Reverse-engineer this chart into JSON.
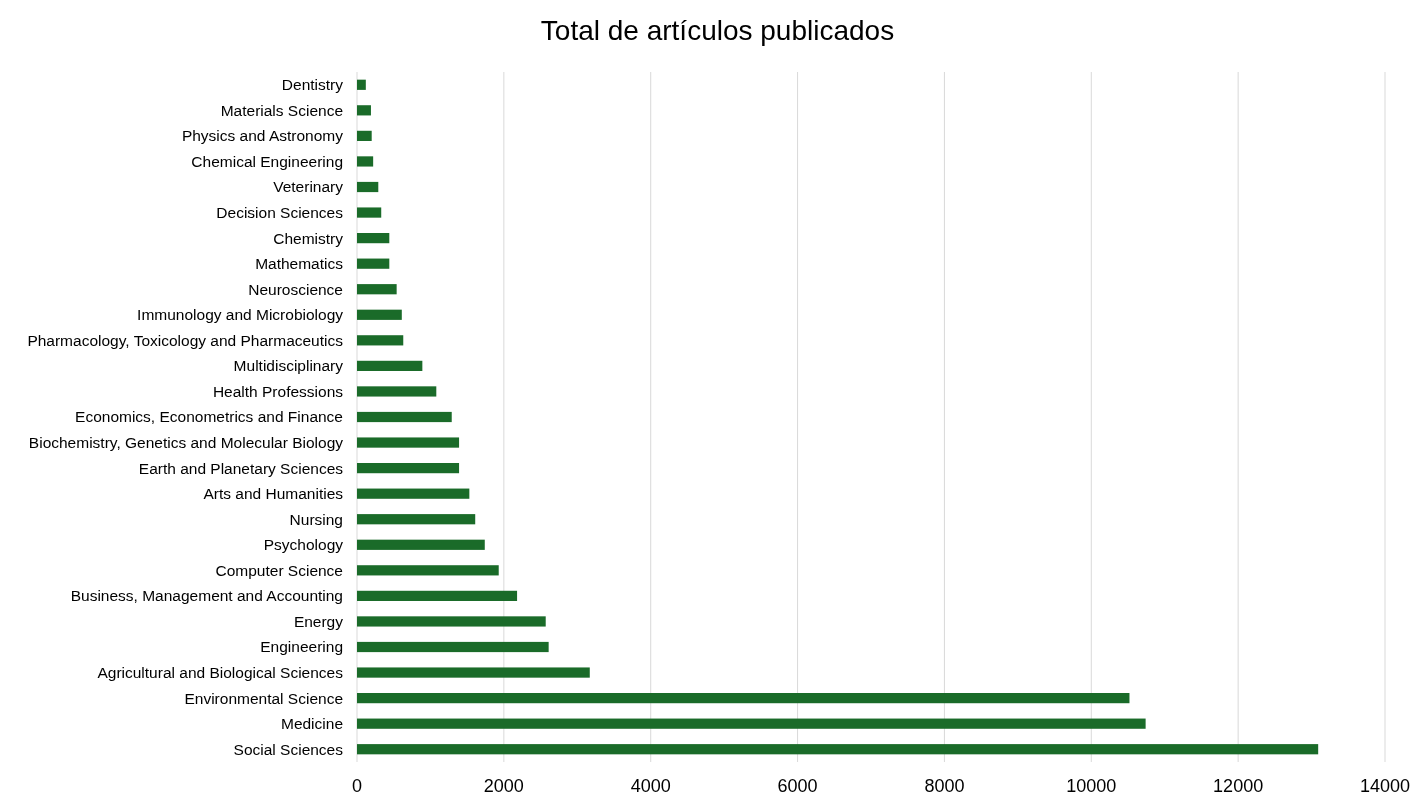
{
  "chart_data": {
    "type": "bar",
    "orientation": "horizontal",
    "title": "Total de artículos publicados",
    "categories": [
      "Dentistry",
      "Materials Science",
      "Physics and Astronomy",
      "Chemical Engineering",
      "Veterinary",
      "Decision Sciences",
      "Chemistry",
      "Mathematics",
      "Neuroscience",
      "Immunology and Microbiology",
      "Pharmacology, Toxicology and Pharmaceutics",
      "Multidisciplinary",
      "Health Professions",
      "Economics, Econometrics and Finance",
      "Biochemistry, Genetics and Molecular Biology",
      "Earth and Planetary Sciences",
      "Arts and Humanities",
      "Nursing",
      "Psychology",
      "Computer Science",
      "Business, Management and Accounting",
      "Energy",
      "Engineering",
      "Agricultural and Biological Sciences",
      "Environmental Science",
      "Medicine",
      "Social Sciences"
    ],
    "values": [
      120,
      190,
      200,
      220,
      290,
      330,
      440,
      440,
      540,
      610,
      630,
      890,
      1080,
      1290,
      1390,
      1390,
      1530,
      1610,
      1740,
      1930,
      2180,
      2570,
      2610,
      3170,
      10520,
      10740,
      13090
    ],
    "color": "#1a6b29",
    "xlim": [
      0,
      14000
    ],
    "xticks": [
      0,
      2000,
      4000,
      6000,
      8000,
      10000,
      12000,
      14000
    ],
    "grid": "x"
  }
}
